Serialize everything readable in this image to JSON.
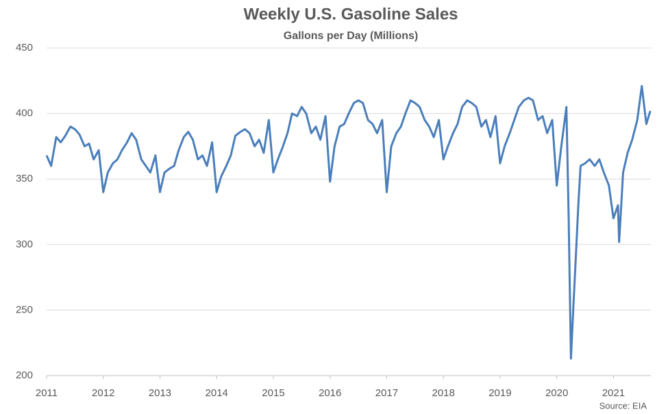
{
  "chart_data": {
    "type": "line",
    "title": "Weekly U.S. Gasoline Sales",
    "subtitle": "Gallons per Day (Millions)",
    "source": "Source: EIA",
    "x": [
      2011,
      2011.08,
      2011.17,
      2011.25,
      2011.33,
      2011.42,
      2011.5,
      2011.58,
      2011.67,
      2011.75,
      2011.83,
      2011.92,
      2012,
      2012.08,
      2012.17,
      2012.25,
      2012.33,
      2012.42,
      2012.5,
      2012.58,
      2012.67,
      2012.75,
      2012.83,
      2012.92,
      2013,
      2013.08,
      2013.17,
      2013.25,
      2013.33,
      2013.42,
      2013.5,
      2013.58,
      2013.67,
      2013.75,
      2013.83,
      2013.92,
      2014,
      2014.08,
      2014.17,
      2014.25,
      2014.33,
      2014.42,
      2014.5,
      2014.58,
      2014.67,
      2014.75,
      2014.83,
      2014.92,
      2015,
      2015.08,
      2015.17,
      2015.25,
      2015.33,
      2015.42,
      2015.5,
      2015.58,
      2015.67,
      2015.75,
      2015.83,
      2015.92,
      2016,
      2016.08,
      2016.17,
      2016.25,
      2016.33,
      2016.42,
      2016.5,
      2016.58,
      2016.67,
      2016.75,
      2016.83,
      2016.92,
      2017,
      2017.08,
      2017.17,
      2017.25,
      2017.33,
      2017.42,
      2017.5,
      2017.58,
      2017.67,
      2017.75,
      2017.83,
      2017.92,
      2018,
      2018.08,
      2018.17,
      2018.25,
      2018.33,
      2018.42,
      2018.5,
      2018.58,
      2018.67,
      2018.75,
      2018.83,
      2018.92,
      2019,
      2019.08,
      2019.17,
      2019.25,
      2019.33,
      2019.42,
      2019.5,
      2019.58,
      2019.67,
      2019.75,
      2019.83,
      2019.92,
      2020,
      2020.08,
      2020.17,
      2020.21,
      2020.25,
      2020.29,
      2020.33,
      2020.38,
      2020.42,
      2020.5,
      2020.58,
      2020.67,
      2020.75,
      2020.83,
      2020.92,
      2021,
      2021.08,
      2021.1,
      2021.17,
      2021.25,
      2021.33,
      2021.42,
      2021.5,
      2021.58,
      2021.65
    ],
    "series": [
      {
        "name": "Gasoline Sales",
        "color": "#4a7ebb",
        "values": [
          368,
          360,
          382,
          378,
          383,
          390,
          388,
          384,
          375,
          377,
          365,
          372,
          340,
          355,
          362,
          365,
          372,
          378,
          385,
          380,
          365,
          360,
          355,
          368,
          340,
          355,
          358,
          360,
          372,
          382,
          386,
          380,
          365,
          368,
          360,
          378,
          340,
          352,
          360,
          368,
          383,
          386,
          388,
          385,
          375,
          380,
          370,
          395,
          355,
          365,
          375,
          385,
          400,
          398,
          405,
          400,
          385,
          390,
          380,
          398,
          348,
          375,
          390,
          392,
          400,
          408,
          410,
          408,
          395,
          392,
          385,
          395,
          340,
          375,
          385,
          390,
          400,
          410,
          408,
          405,
          395,
          390,
          382,
          395,
          365,
          375,
          385,
          392,
          405,
          410,
          408,
          405,
          390,
          395,
          382,
          398,
          362,
          375,
          385,
          395,
          405,
          410,
          412,
          410,
          395,
          398,
          385,
          395,
          345,
          375,
          405,
          320,
          213,
          250,
          285,
          330,
          360,
          362,
          365,
          360,
          365,
          355,
          345,
          320,
          330,
          302,
          355,
          370,
          380,
          395,
          421,
          392,
          402
        ]
      }
    ],
    "xlim": [
      2011,
      2021.66
    ],
    "xticks": [
      2011,
      2012,
      2013,
      2014,
      2015,
      2016,
      2017,
      2018,
      2019,
      2020,
      2021
    ],
    "ylim": [
      200,
      450
    ],
    "yticks": [
      200,
      250,
      300,
      350,
      400,
      450
    ],
    "grid": true
  }
}
